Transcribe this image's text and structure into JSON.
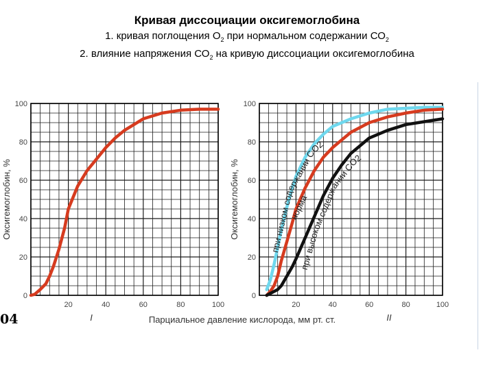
{
  "slide": {
    "title": "Кривая диссоциации  оксигемоглобина",
    "subtitle_1_text": "1.  кривая поглощения  О",
    "subtitle_1_sub1": "2",
    "subtitle_1_text2": "  при нормальном содержании СО",
    "subtitle_1_sub2": "2",
    "subtitle_2_text": "2. влияние напряжения СО",
    "subtitle_2_sub": "2",
    "subtitle_2_text2": " на кривую диссоциации оксигемоглобина",
    "page_fragment": "04"
  },
  "shared_xlabel": "Парциальное давление кислорода, мм  рт. ст.",
  "colors": {
    "red": "#d63b1f",
    "cyan": "#6fd8ee",
    "black": "#111111",
    "grid": "#1a1a1a"
  },
  "chart_data": [
    {
      "type": "line",
      "panel_label": "I",
      "ylabel": "Оксигемоглобин, %",
      "xlim": [
        0,
        100
      ],
      "ylim": [
        0,
        100
      ],
      "x_ticks": [
        "20",
        "40",
        "60",
        "80",
        "100"
      ],
      "y_ticks": [
        "0",
        "20",
        "40",
        "60",
        "80",
        "100"
      ],
      "grid": true,
      "series": [
        {
          "color": "#d63b1f",
          "x": [
            0,
            2,
            5,
            8,
            10,
            12,
            15,
            18,
            20,
            25,
            30,
            35,
            40,
            45,
            50,
            55,
            60,
            70,
            80,
            90,
            100
          ],
          "y": [
            0,
            0.5,
            3,
            6,
            10,
            15,
            24,
            35,
            45,
            57,
            65,
            71,
            77,
            82,
            86,
            89,
            92,
            95,
            96.5,
            97,
            97
          ]
        }
      ]
    },
    {
      "type": "line",
      "panel_label": "II",
      "ylabel": "Оксигемоглобин, %",
      "xlim": [
        0,
        100
      ],
      "ylim": [
        0,
        100
      ],
      "x_ticks": [
        "20",
        "40",
        "60",
        "80",
        "100"
      ],
      "y_ticks": [
        "0",
        "20",
        "40",
        "60",
        "80",
        "100"
      ],
      "grid": true,
      "annotations": [
        "при низком содержании СО2",
        "норма",
        "при высоком содержании СО2"
      ],
      "series": [
        {
          "name": "при низком содержании СО2",
          "color": "#6fd8ee",
          "x": [
            4,
            6,
            8,
            10,
            12,
            15,
            18,
            20,
            25,
            30,
            35,
            40,
            50,
            60,
            70,
            80,
            90,
            100
          ],
          "y": [
            3,
            8,
            16,
            25,
            34,
            46,
            56,
            62,
            72,
            79,
            84,
            88,
            92,
            95,
            97,
            97.5,
            98,
            98
          ]
        },
        {
          "name": "норма",
          "color": "#d63b1f",
          "x": [
            4,
            6,
            8,
            10,
            12,
            15,
            18,
            20,
            25,
            30,
            35,
            40,
            45,
            50,
            60,
            70,
            80,
            90,
            100
          ],
          "y": [
            0,
            2,
            5,
            10,
            18,
            28,
            38,
            45,
            56,
            65,
            72,
            77,
            81,
            85,
            90,
            93,
            95,
            96.5,
            97
          ]
        },
        {
          "name": "при высоком содержании СО2",
          "color": "#111111",
          "x": [
            4,
            6,
            8,
            10,
            12,
            15,
            18,
            20,
            25,
            30,
            35,
            40,
            45,
            50,
            55,
            60,
            70,
            80,
            90,
            100
          ],
          "y": [
            0,
            1,
            2,
            3,
            5,
            10,
            15,
            19,
            30,
            41,
            52,
            61,
            68,
            74,
            78,
            82,
            86,
            89,
            90.5,
            92
          ]
        }
      ]
    }
  ]
}
